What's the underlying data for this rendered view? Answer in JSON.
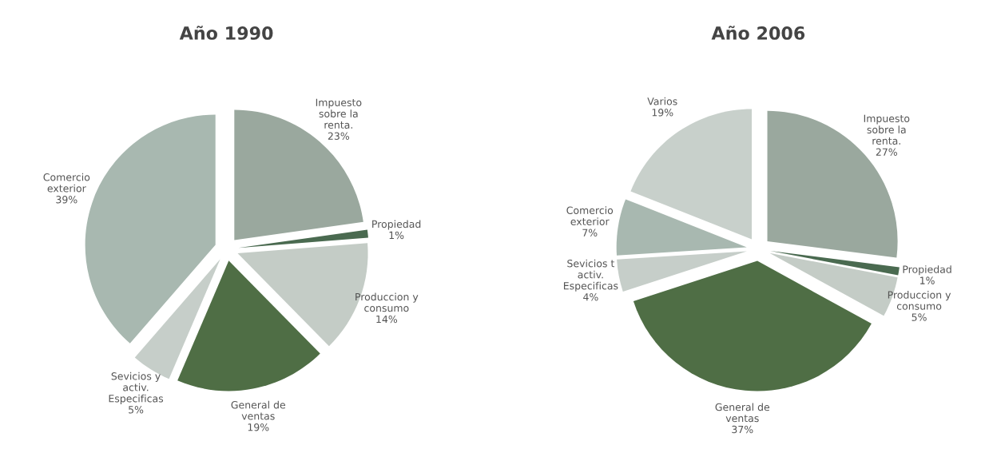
{
  "chart_data": [
    {
      "type": "pie",
      "title": "Año 1990",
      "categories": [
        "Impuesto\nsobre la\nrenta.",
        "Propiedad",
        "Produccion y\nconsumo",
        "General de\nventas",
        "Sevicios y\nactiv.\nEspecificas",
        "Comercio\nexterior"
      ],
      "values": [
        23,
        1,
        14,
        19,
        5,
        39
      ],
      "value_labels": [
        "23%",
        "1%",
        "14%",
        "19%",
        "5%",
        "39%"
      ],
      "colors": [
        "#9aa89e",
        "#4a6a50",
        "#c4ccc6",
        "#4f6e45",
        "#c6cec9",
        "#a8b8b0"
      ]
    },
    {
      "type": "pie",
      "title": "Año 2006",
      "categories": [
        "Impuesto\nsobre la\nrenta.",
        "Propiedad",
        "Produccion y\nconsumo",
        "General de\nventas",
        "Sevicios t\nactiv.\nEspecificas",
        "Comercio\nexterior",
        "Varios"
      ],
      "values": [
        27,
        1,
        5,
        37,
        4,
        7,
        19
      ],
      "value_labels": [
        "27%",
        "1%",
        "5%",
        "37%",
        "4%",
        "7%",
        "19%"
      ],
      "colors": [
        "#9aa89e",
        "#4a6a50",
        "#c4ccc6",
        "#4f6e45",
        "#c6cec9",
        "#a8b8b0",
        "#c8d0cb"
      ]
    }
  ]
}
